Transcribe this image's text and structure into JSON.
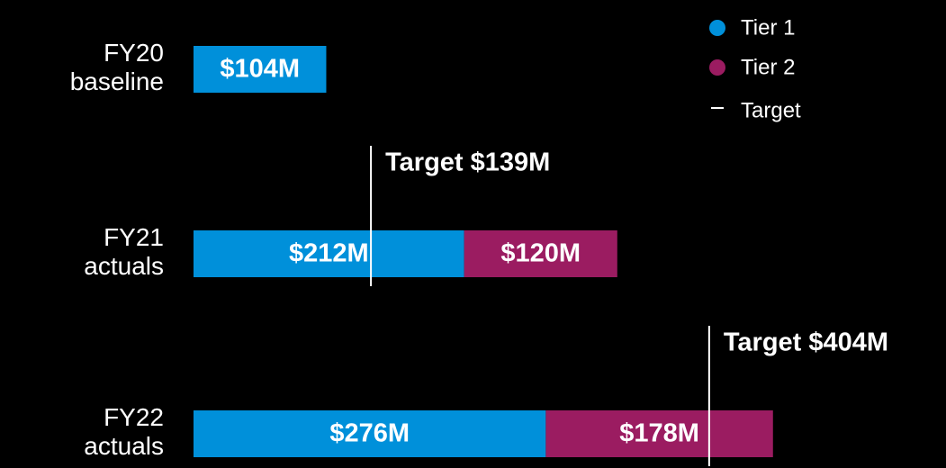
{
  "chart_data": {
    "type": "stacked-bar-horizontal",
    "categories": [
      "FY20 baseline",
      "FY21 actuals",
      "FY22 actuals"
    ],
    "series": [
      {
        "name": "Tier 1",
        "color": "#0090da",
        "values": [
          104,
          212,
          276
        ],
        "value_labels": [
          "$104M",
          "$212M",
          "$276M"
        ]
      },
      {
        "name": "Tier 2",
        "color": "#9b1c61",
        "values": [
          null,
          120,
          178
        ],
        "value_labels": [
          null,
          "$120M",
          "$178M"
        ]
      }
    ],
    "targets": {
      "name": "Target",
      "color": "#ffffff",
      "values": [
        null,
        139,
        404
      ],
      "value_labels": [
        null,
        "Target $139M",
        "Target $404M"
      ]
    },
    "legend": "top-right"
  }
}
